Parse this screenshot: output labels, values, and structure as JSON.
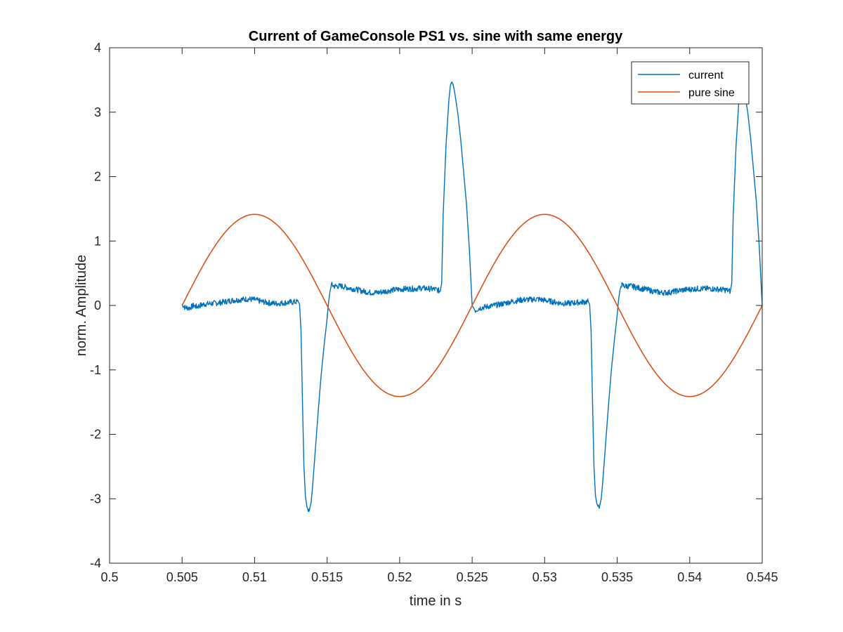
{
  "chart_data": {
    "type": "line",
    "title": "Current of GameConsole PS1 vs. sine with same energy",
    "xlabel": "time in s",
    "ylabel": "norm. Amplitude",
    "xlim": [
      0.5,
      0.545
    ],
    "ylim": [
      -4,
      4
    ],
    "xticks": [
      0.5,
      0.505,
      0.51,
      0.515,
      0.52,
      0.525,
      0.53,
      0.535,
      0.54,
      0.545
    ],
    "xtick_labels": [
      "0.5",
      "0.505",
      "0.51",
      "0.515",
      "0.52",
      "0.525",
      "0.53",
      "0.535",
      "0.54",
      "0.545"
    ],
    "yticks": [
      -4,
      -3,
      -2,
      -1,
      0,
      1,
      2,
      3,
      4
    ],
    "ytick_labels": [
      "-4",
      "-3",
      "-2",
      "-1",
      "0",
      "1",
      "2",
      "3",
      "4"
    ],
    "grid": false,
    "legend_position": "top-right",
    "series": [
      {
        "name": "current",
        "color": "#0072BD",
        "points": [
          [
            0.505,
            0.02
          ],
          [
            0.5052,
            -0.03
          ],
          [
            0.5055,
            -0.04
          ],
          [
            0.5058,
            0.0
          ],
          [
            0.506,
            -0.02
          ],
          [
            0.5065,
            0.02
          ],
          [
            0.507,
            0.03
          ],
          [
            0.5075,
            0.04
          ],
          [
            0.508,
            0.06
          ],
          [
            0.5085,
            0.08
          ],
          [
            0.509,
            0.09
          ],
          [
            0.5095,
            0.1
          ],
          [
            0.51,
            0.09
          ],
          [
            0.5105,
            0.06
          ],
          [
            0.511,
            0.04
          ],
          [
            0.5115,
            0.03
          ],
          [
            0.512,
            0.04
          ],
          [
            0.5125,
            0.05
          ],
          [
            0.513,
            0.06
          ],
          [
            0.5131,
            0.02
          ],
          [
            0.5132,
            -0.4
          ],
          [
            0.5133,
            -1.5
          ],
          [
            0.5134,
            -2.5
          ],
          [
            0.5135,
            -2.95
          ],
          [
            0.5136,
            -3.12
          ],
          [
            0.5137,
            -3.18
          ],
          [
            0.5138,
            -3.15
          ],
          [
            0.5139,
            -3.05
          ],
          [
            0.514,
            -2.8
          ],
          [
            0.5142,
            -2.2
          ],
          [
            0.5144,
            -1.6
          ],
          [
            0.5146,
            -1.05
          ],
          [
            0.5148,
            -0.6
          ],
          [
            0.515,
            -0.2
          ],
          [
            0.5151,
            0.05
          ],
          [
            0.5152,
            0.22
          ],
          [
            0.5153,
            0.32
          ],
          [
            0.5155,
            0.3
          ],
          [
            0.516,
            0.3
          ],
          [
            0.5165,
            0.27
          ],
          [
            0.517,
            0.25
          ],
          [
            0.5175,
            0.22
          ],
          [
            0.518,
            0.2
          ],
          [
            0.5185,
            0.2
          ],
          [
            0.519,
            0.22
          ],
          [
            0.5195,
            0.24
          ],
          [
            0.52,
            0.25
          ],
          [
            0.5205,
            0.26
          ],
          [
            0.521,
            0.26
          ],
          [
            0.5215,
            0.27
          ],
          [
            0.522,
            0.26
          ],
          [
            0.5225,
            0.25
          ],
          [
            0.5228,
            0.22
          ],
          [
            0.5229,
            0.35
          ],
          [
            0.523,
            1.4
          ],
          [
            0.5232,
            2.5
          ],
          [
            0.5234,
            3.2
          ],
          [
            0.5235,
            3.42
          ],
          [
            0.5236,
            3.47
          ],
          [
            0.5237,
            3.42
          ],
          [
            0.5238,
            3.3
          ],
          [
            0.524,
            3.0
          ],
          [
            0.5242,
            2.6
          ],
          [
            0.5244,
            2.1
          ],
          [
            0.5246,
            1.6
          ],
          [
            0.5248,
            0.9
          ],
          [
            0.525,
            0.0
          ],
          [
            0.5252,
            -0.08
          ],
          [
            0.5255,
            -0.04
          ],
          [
            0.526,
            -0.02
          ],
          [
            0.5265,
            0.0
          ],
          [
            0.527,
            0.02
          ],
          [
            0.5275,
            0.05
          ],
          [
            0.528,
            0.07
          ],
          [
            0.5285,
            0.09
          ],
          [
            0.529,
            0.09
          ],
          [
            0.5295,
            0.1
          ],
          [
            0.53,
            0.08
          ],
          [
            0.5305,
            0.06
          ],
          [
            0.531,
            0.04
          ],
          [
            0.5315,
            0.03
          ],
          [
            0.532,
            0.04
          ],
          [
            0.5325,
            0.05
          ],
          [
            0.533,
            0.06
          ],
          [
            0.5331,
            0.02
          ],
          [
            0.5332,
            -0.4
          ],
          [
            0.5333,
            -1.5
          ],
          [
            0.5334,
            -2.5
          ],
          [
            0.5335,
            -2.95
          ],
          [
            0.5336,
            -3.08
          ],
          [
            0.5337,
            -3.13
          ],
          [
            0.5338,
            -3.1
          ],
          [
            0.5339,
            -3.0
          ],
          [
            0.534,
            -2.75
          ],
          [
            0.5342,
            -2.15
          ],
          [
            0.5344,
            -1.55
          ],
          [
            0.5346,
            -1.0
          ],
          [
            0.5348,
            -0.55
          ],
          [
            0.535,
            -0.15
          ],
          [
            0.5351,
            0.1
          ],
          [
            0.5352,
            0.25
          ],
          [
            0.5353,
            0.32
          ],
          [
            0.5355,
            0.3
          ],
          [
            0.536,
            0.3
          ],
          [
            0.5365,
            0.27
          ],
          [
            0.537,
            0.25
          ],
          [
            0.5375,
            0.22
          ],
          [
            0.538,
            0.2
          ],
          [
            0.5385,
            0.2
          ],
          [
            0.539,
            0.22
          ],
          [
            0.5395,
            0.24
          ],
          [
            0.54,
            0.25
          ],
          [
            0.5405,
            0.26
          ],
          [
            0.541,
            0.26
          ],
          [
            0.5415,
            0.26
          ],
          [
            0.542,
            0.25
          ],
          [
            0.5425,
            0.24
          ],
          [
            0.5428,
            0.22
          ],
          [
            0.5429,
            0.35
          ],
          [
            0.543,
            1.4
          ],
          [
            0.5432,
            2.5
          ],
          [
            0.5434,
            3.2
          ],
          [
            0.5435,
            3.42
          ],
          [
            0.5436,
            3.47
          ],
          [
            0.5437,
            3.42
          ],
          [
            0.5438,
            3.3
          ],
          [
            0.544,
            3.0
          ],
          [
            0.5442,
            2.6
          ],
          [
            0.5444,
            2.1
          ],
          [
            0.5446,
            1.6
          ],
          [
            0.5448,
            0.9
          ],
          [
            0.545,
            0.0
          ]
        ]
      },
      {
        "name": "pure sine",
        "color": "#D95319",
        "function": {
          "amplitude": 1.414,
          "frequency_hz": 50,
          "phase_reference_s": 0.505,
          "x_start": 0.505,
          "x_end": 0.545
        }
      }
    ]
  }
}
